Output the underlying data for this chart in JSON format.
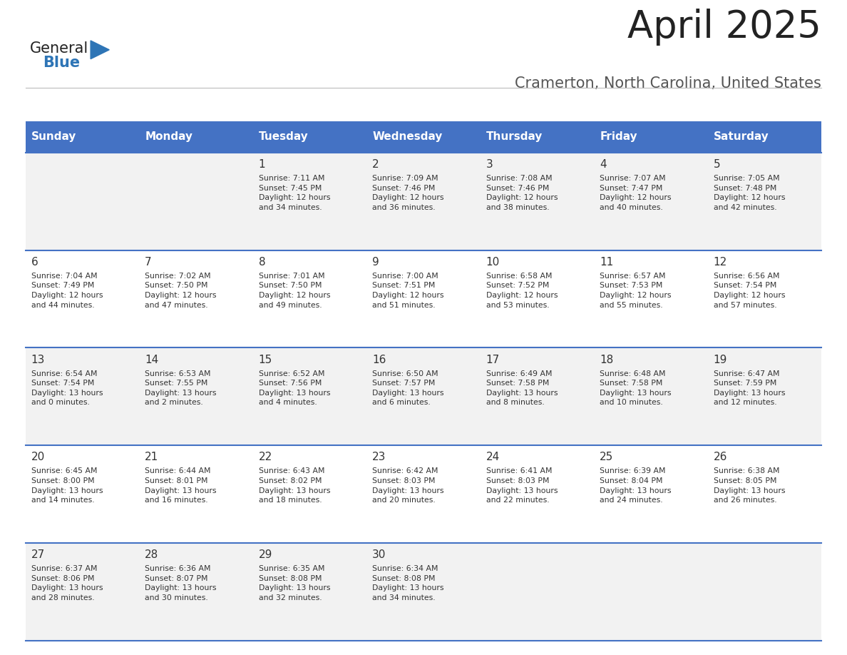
{
  "title": "April 2025",
  "subtitle": "Cramerton, North Carolina, United States",
  "header_bg": "#4472C4",
  "header_text_color": "#FFFFFF",
  "days_of_week": [
    "Sunday",
    "Monday",
    "Tuesday",
    "Wednesday",
    "Thursday",
    "Friday",
    "Saturday"
  ],
  "cell_bg_odd": "#F2F2F2",
  "cell_bg_even": "#FFFFFF",
  "cell_border_color": "#4472C4",
  "day_number_color": "#333333",
  "cell_text_color": "#333333",
  "title_color": "#222222",
  "subtitle_color": "#555555",
  "logo_text1": "General",
  "logo_text2": "Blue",
  "logo_color1": "#222222",
  "logo_color2": "#2E75B6",
  "triangle_color": "#2E75B6",
  "weeks": [
    [
      {
        "day": null,
        "text": ""
      },
      {
        "day": null,
        "text": ""
      },
      {
        "day": 1,
        "text": "Sunrise: 7:11 AM\nSunset: 7:45 PM\nDaylight: 12 hours\nand 34 minutes."
      },
      {
        "day": 2,
        "text": "Sunrise: 7:09 AM\nSunset: 7:46 PM\nDaylight: 12 hours\nand 36 minutes."
      },
      {
        "day": 3,
        "text": "Sunrise: 7:08 AM\nSunset: 7:46 PM\nDaylight: 12 hours\nand 38 minutes."
      },
      {
        "day": 4,
        "text": "Sunrise: 7:07 AM\nSunset: 7:47 PM\nDaylight: 12 hours\nand 40 minutes."
      },
      {
        "day": 5,
        "text": "Sunrise: 7:05 AM\nSunset: 7:48 PM\nDaylight: 12 hours\nand 42 minutes."
      }
    ],
    [
      {
        "day": 6,
        "text": "Sunrise: 7:04 AM\nSunset: 7:49 PM\nDaylight: 12 hours\nand 44 minutes."
      },
      {
        "day": 7,
        "text": "Sunrise: 7:02 AM\nSunset: 7:50 PM\nDaylight: 12 hours\nand 47 minutes."
      },
      {
        "day": 8,
        "text": "Sunrise: 7:01 AM\nSunset: 7:50 PM\nDaylight: 12 hours\nand 49 minutes."
      },
      {
        "day": 9,
        "text": "Sunrise: 7:00 AM\nSunset: 7:51 PM\nDaylight: 12 hours\nand 51 minutes."
      },
      {
        "day": 10,
        "text": "Sunrise: 6:58 AM\nSunset: 7:52 PM\nDaylight: 12 hours\nand 53 minutes."
      },
      {
        "day": 11,
        "text": "Sunrise: 6:57 AM\nSunset: 7:53 PM\nDaylight: 12 hours\nand 55 minutes."
      },
      {
        "day": 12,
        "text": "Sunrise: 6:56 AM\nSunset: 7:54 PM\nDaylight: 12 hours\nand 57 minutes."
      }
    ],
    [
      {
        "day": 13,
        "text": "Sunrise: 6:54 AM\nSunset: 7:54 PM\nDaylight: 13 hours\nand 0 minutes."
      },
      {
        "day": 14,
        "text": "Sunrise: 6:53 AM\nSunset: 7:55 PM\nDaylight: 13 hours\nand 2 minutes."
      },
      {
        "day": 15,
        "text": "Sunrise: 6:52 AM\nSunset: 7:56 PM\nDaylight: 13 hours\nand 4 minutes."
      },
      {
        "day": 16,
        "text": "Sunrise: 6:50 AM\nSunset: 7:57 PM\nDaylight: 13 hours\nand 6 minutes."
      },
      {
        "day": 17,
        "text": "Sunrise: 6:49 AM\nSunset: 7:58 PM\nDaylight: 13 hours\nand 8 minutes."
      },
      {
        "day": 18,
        "text": "Sunrise: 6:48 AM\nSunset: 7:58 PM\nDaylight: 13 hours\nand 10 minutes."
      },
      {
        "day": 19,
        "text": "Sunrise: 6:47 AM\nSunset: 7:59 PM\nDaylight: 13 hours\nand 12 minutes."
      }
    ],
    [
      {
        "day": 20,
        "text": "Sunrise: 6:45 AM\nSunset: 8:00 PM\nDaylight: 13 hours\nand 14 minutes."
      },
      {
        "day": 21,
        "text": "Sunrise: 6:44 AM\nSunset: 8:01 PM\nDaylight: 13 hours\nand 16 minutes."
      },
      {
        "day": 22,
        "text": "Sunrise: 6:43 AM\nSunset: 8:02 PM\nDaylight: 13 hours\nand 18 minutes."
      },
      {
        "day": 23,
        "text": "Sunrise: 6:42 AM\nSunset: 8:03 PM\nDaylight: 13 hours\nand 20 minutes."
      },
      {
        "day": 24,
        "text": "Sunrise: 6:41 AM\nSunset: 8:03 PM\nDaylight: 13 hours\nand 22 minutes."
      },
      {
        "day": 25,
        "text": "Sunrise: 6:39 AM\nSunset: 8:04 PM\nDaylight: 13 hours\nand 24 minutes."
      },
      {
        "day": 26,
        "text": "Sunrise: 6:38 AM\nSunset: 8:05 PM\nDaylight: 13 hours\nand 26 minutes."
      }
    ],
    [
      {
        "day": 27,
        "text": "Sunrise: 6:37 AM\nSunset: 8:06 PM\nDaylight: 13 hours\nand 28 minutes."
      },
      {
        "day": 28,
        "text": "Sunrise: 6:36 AM\nSunset: 8:07 PM\nDaylight: 13 hours\nand 30 minutes."
      },
      {
        "day": 29,
        "text": "Sunrise: 6:35 AM\nSunset: 8:08 PM\nDaylight: 13 hours\nand 32 minutes."
      },
      {
        "day": 30,
        "text": "Sunrise: 6:34 AM\nSunset: 8:08 PM\nDaylight: 13 hours\nand 34 minutes."
      },
      {
        "day": null,
        "text": ""
      },
      {
        "day": null,
        "text": ""
      },
      {
        "day": null,
        "text": ""
      }
    ]
  ]
}
